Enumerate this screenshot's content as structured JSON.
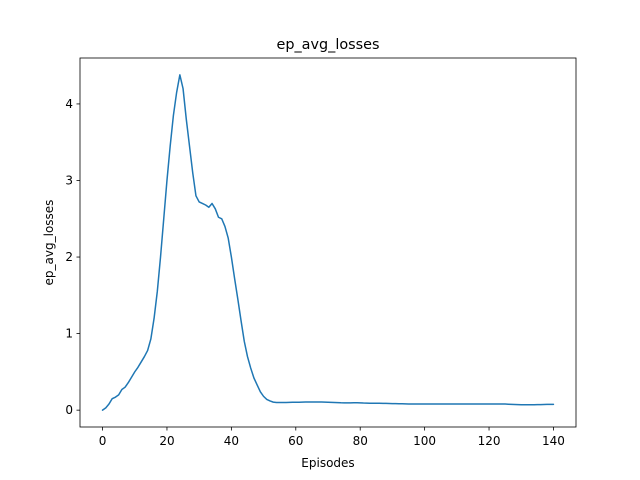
{
  "chart_data": {
    "type": "line",
    "title": "ep_avg_losses",
    "xlabel": "Episodes",
    "ylabel": "ep_avg_losses",
    "xlim": [
      -7,
      147
    ],
    "ylim": [
      -0.22,
      4.6
    ],
    "xticks": [
      0,
      20,
      40,
      60,
      80,
      100,
      120,
      140
    ],
    "yticks": [
      0,
      1,
      2,
      3,
      4
    ],
    "grid": false,
    "line_color": "#1f77b4",
    "series": [
      {
        "x": [
          0,
          1,
          2,
          3,
          4,
          5,
          6,
          7,
          8,
          9,
          10,
          11,
          12,
          13,
          14,
          15,
          16,
          17,
          18,
          19,
          20,
          21,
          22,
          23,
          24,
          25,
          26,
          27,
          28,
          29,
          30,
          31,
          32,
          33,
          34,
          35,
          36,
          37,
          38,
          39,
          40,
          41,
          42,
          43,
          44,
          45,
          46,
          47,
          48,
          49,
          50,
          51,
          52,
          53,
          54,
          55,
          56,
          57,
          58,
          59,
          60,
          61,
          62,
          63,
          64,
          65,
          66,
          67,
          68,
          69,
          70,
          71,
          72,
          73,
          74,
          75,
          76,
          77,
          78,
          79,
          80,
          81,
          82,
          83,
          84,
          85,
          86,
          87,
          88,
          89,
          90,
          91,
          92,
          93,
          94,
          95,
          96,
          97,
          98,
          99,
          100,
          101,
          102,
          103,
          104,
          105,
          106,
          107,
          108,
          109,
          110,
          111,
          112,
          113,
          114,
          115,
          116,
          117,
          118,
          119,
          120,
          121,
          122,
          123,
          124,
          125,
          126,
          127,
          128,
          129,
          130,
          131,
          132,
          133,
          134,
          135,
          136,
          137,
          138,
          139,
          140
        ],
        "y": [
          0.0,
          0.03,
          0.08,
          0.15,
          0.17,
          0.2,
          0.27,
          0.3,
          0.36,
          0.43,
          0.5,
          0.56,
          0.63,
          0.7,
          0.78,
          0.93,
          1.2,
          1.55,
          2.0,
          2.5,
          3.0,
          3.45,
          3.85,
          4.15,
          4.38,
          4.2,
          3.8,
          3.45,
          3.1,
          2.8,
          2.72,
          2.7,
          2.68,
          2.65,
          2.7,
          2.63,
          2.52,
          2.5,
          2.4,
          2.25,
          2.0,
          1.72,
          1.45,
          1.17,
          0.9,
          0.7,
          0.55,
          0.42,
          0.33,
          0.24,
          0.18,
          0.14,
          0.12,
          0.105,
          0.1,
          0.1,
          0.1,
          0.1,
          0.102,
          0.103,
          0.103,
          0.104,
          0.105,
          0.106,
          0.107,
          0.107,
          0.107,
          0.107,
          0.106,
          0.105,
          0.104,
          0.102,
          0.1,
          0.098,
          0.096,
          0.095,
          0.095,
          0.095,
          0.096,
          0.097,
          0.095,
          0.093,
          0.092,
          0.091,
          0.09,
          0.09,
          0.09,
          0.089,
          0.088,
          0.087,
          0.086,
          0.085,
          0.084,
          0.083,
          0.082,
          0.081,
          0.08,
          0.08,
          0.08,
          0.08,
          0.08,
          0.08,
          0.08,
          0.081,
          0.081,
          0.081,
          0.081,
          0.08,
          0.08,
          0.08,
          0.08,
          0.08,
          0.08,
          0.08,
          0.08,
          0.08,
          0.08,
          0.08,
          0.08,
          0.08,
          0.08,
          0.08,
          0.08,
          0.08,
          0.08,
          0.08,
          0.078,
          0.076,
          0.074,
          0.072,
          0.07,
          0.07,
          0.07,
          0.07,
          0.071,
          0.072,
          0.073,
          0.074,
          0.075,
          0.075,
          0.076
        ]
      }
    ]
  }
}
